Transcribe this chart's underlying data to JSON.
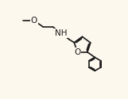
{
  "background_color": "#fdf8ee",
  "bond_color": "#1a1a1a",
  "text_color": "#1a1a1a",
  "font_size": 7.5,
  "figsize": [
    1.61,
    1.25
  ],
  "dpi": 100,
  "xlim": [
    -0.05,
    1.05
  ],
  "ylim": [
    -0.05,
    1.05
  ]
}
